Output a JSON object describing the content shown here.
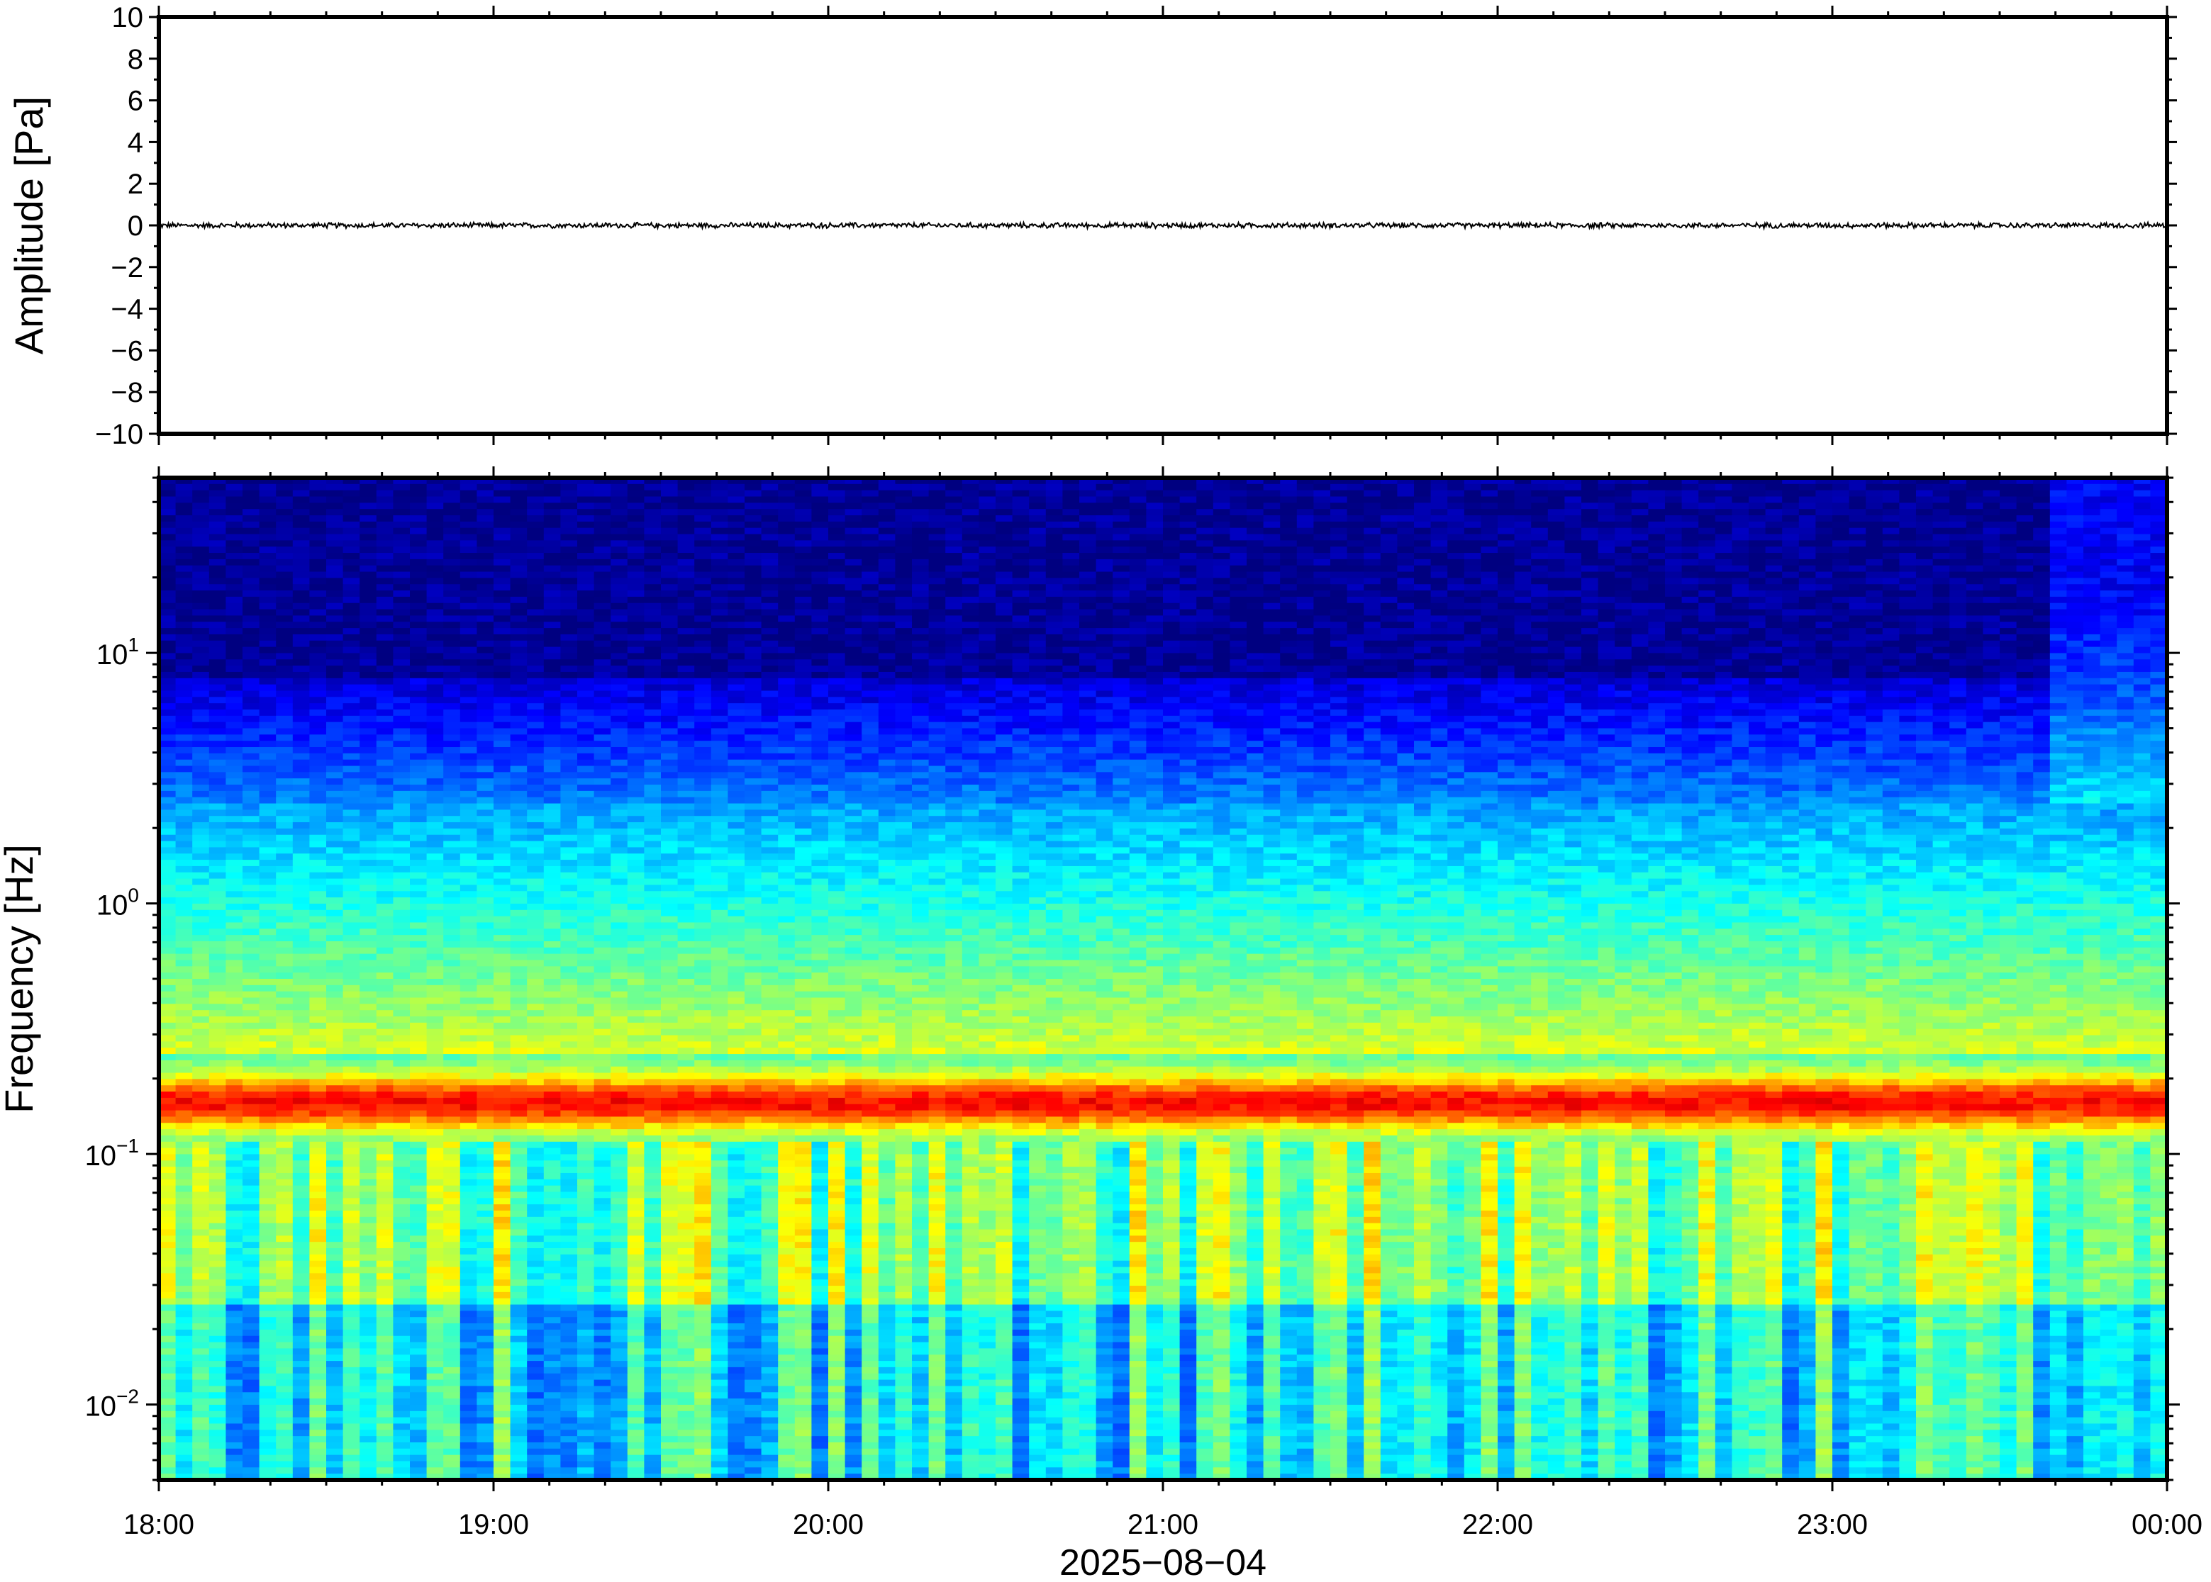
{
  "chart_data": [
    {
      "type": "line",
      "ylabel": "Amplitude [Pa]",
      "ylim": [
        -10,
        10
      ],
      "yticks": [
        10,
        8,
        6,
        4,
        2,
        0,
        -2,
        -4,
        -6,
        -8,
        -10
      ],
      "ytick_labels": [
        "10",
        "8",
        "6",
        "4",
        "2",
        "0",
        "−2",
        "−4",
        "−6",
        "−8",
        "−10"
      ],
      "series": [
        {
          "values_description": "",
          "level": 0,
          "max_abs_amplitude": 0.15
        }
      ],
      "color": "#000000"
    },
    {
      "type": "heatmap",
      "ylabel": "Frequency [Hz]",
      "yscale": "log",
      "ylim": [
        0.005,
        50
      ],
      "yticks": [
        0.01,
        0.1,
        1,
        10
      ],
      "ytick_labels": [
        {
          "base": "10",
          "exp": "−2"
        },
        {
          "base": "10",
          "exp": "−1"
        },
        {
          "base": "10",
          "exp": "0"
        },
        {
          "base": "10",
          "exp": "1"
        }
      ],
      "colormap": "jet",
      "spectral_peak_hz": 0.16,
      "xlim": [
        "18:00",
        "00:00"
      ]
    }
  ],
  "x_axis": {
    "tick_labels": [
      "18:00",
      "19:00",
      "20:00",
      "21:00",
      "22:00",
      "23:00",
      "00:00"
    ],
    "xlabel": "2025−08−04"
  }
}
